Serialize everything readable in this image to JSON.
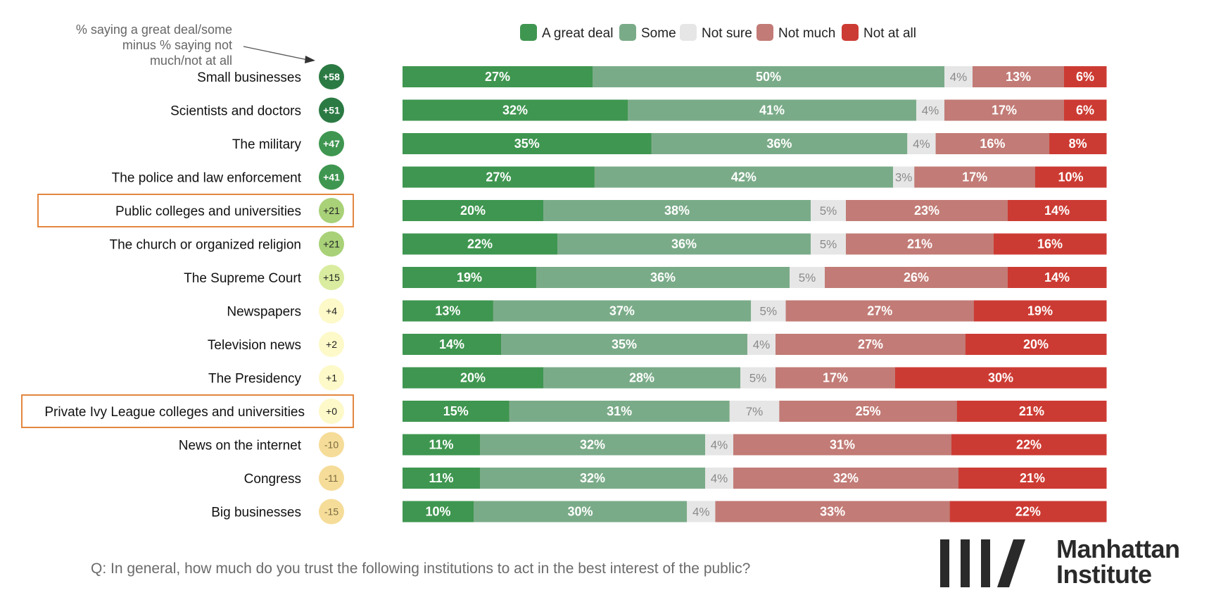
{
  "chart_data": {
    "type": "stacked-bar",
    "orientation": "horizontal",
    "legend": {
      "placement": "top",
      "entries": [
        "A great deal",
        "Some",
        "Not sure",
        "Not much",
        "Not at all"
      ]
    },
    "net_note": "% saying a great deal/some minus % saying not much/not at all",
    "categories": [
      "Small businesses",
      "Scientists and doctors",
      "The military",
      "The police and law enforcement",
      "Public colleges and universities",
      "The church or organized religion",
      "The Supreme Court",
      "Newspapers",
      "Television news",
      "The Presidency",
      "Private Ivy League colleges and universities",
      "News on the internet",
      "Congress",
      "Big businesses"
    ],
    "net_labels": [
      "+58",
      "+51",
      "+47",
      "+41",
      "+21",
      "+21",
      "+15",
      "+4",
      "+2",
      "+1",
      "+0",
      "-10",
      "-11",
      "-15"
    ],
    "net_values": [
      58,
      51,
      47,
      41,
      21,
      21,
      15,
      4,
      2,
      1,
      0,
      -10,
      -11,
      -15
    ],
    "highlighted": [
      "Public colleges and universities",
      "Private Ivy League colleges and universities"
    ],
    "series": [
      {
        "name": "A great deal",
        "color": "#3f9650",
        "values": [
          27,
          32,
          35,
          27,
          20,
          22,
          19,
          13,
          14,
          20,
          15,
          11,
          11,
          10
        ]
      },
      {
        "name": "Some",
        "color": "#7aab88",
        "values": [
          50,
          41,
          36,
          42,
          38,
          36,
          36,
          37,
          35,
          28,
          31,
          32,
          32,
          30
        ]
      },
      {
        "name": "Not sure",
        "color": "#e6e6e6",
        "values": [
          4,
          4,
          4,
          3,
          5,
          5,
          5,
          5,
          4,
          5,
          7,
          4,
          4,
          4
        ]
      },
      {
        "name": "Not much",
        "color": "#c27b76",
        "values": [
          13,
          17,
          16,
          17,
          23,
          21,
          26,
          27,
          27,
          17,
          25,
          31,
          32,
          33
        ]
      },
      {
        "name": "Not at all",
        "color": "#cc3b33",
        "values": [
          6,
          6,
          8,
          10,
          14,
          16,
          14,
          19,
          20,
          30,
          21,
          22,
          21,
          22
        ]
      }
    ],
    "value_suffix": "%",
    "xlim": [
      0,
      100
    ]
  },
  "footer": {
    "question": "Q: In general, how much do you trust the following institutions to act in the best interest of the public?"
  },
  "logo": {
    "line1": "Manhattan",
    "line2": "Institute"
  }
}
